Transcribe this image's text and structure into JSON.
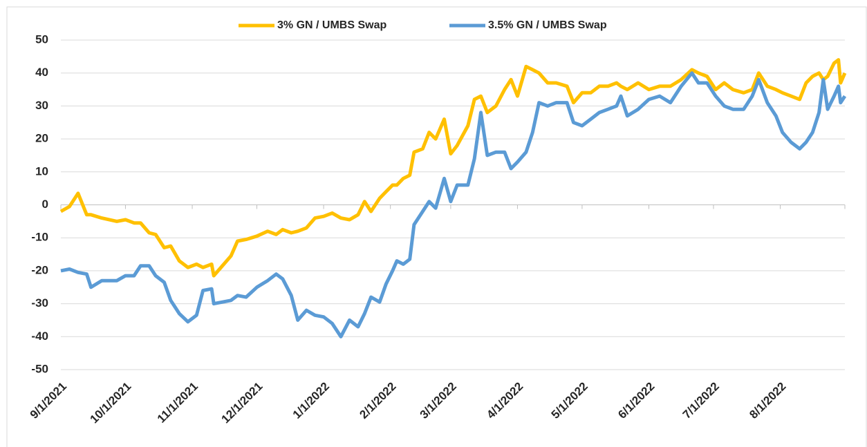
{
  "chart_data": {
    "type": "line",
    "legend": "top",
    "grid": true,
    "ylim": [
      -50,
      50
    ],
    "yticks": [
      -50,
      -40,
      -30,
      -20,
      -10,
      0,
      10,
      20,
      30,
      40,
      50
    ],
    "xlim": [
      "9/1/2021",
      "8/31/2022"
    ],
    "xticks": [
      "9/1/2021",
      "10/1/2021",
      "11/1/2021",
      "12/1/2021",
      "1/1/2022",
      "2/1/2022",
      "3/1/2022",
      "4/1/2022",
      "5/1/2022",
      "6/1/2022",
      "7/1/2022",
      "8/1/2022"
    ],
    "x": [
      "9/1/2021",
      "9/5/2021",
      "9/9/2021",
      "9/13/2021",
      "9/15/2021",
      "9/20/2021",
      "9/27/2021",
      "10/1/2021",
      "10/5/2021",
      "10/8/2021",
      "10/12/2021",
      "10/15/2021",
      "10/19/2021",
      "10/22/2021",
      "10/26/2021",
      "10/30/2021",
      "11/3/2021",
      "11/6/2021",
      "11/10/2021",
      "11/11/2021",
      "11/15/2021",
      "11/19/2021",
      "11/22/2021",
      "11/26/2021",
      "12/1/2021",
      "12/6/2021",
      "12/10/2021",
      "12/13/2021",
      "12/17/2021",
      "12/20/2021",
      "12/24/2021",
      "12/28/2021",
      "1/1/2022",
      "1/5/2022",
      "1/9/2022",
      "1/13/2022",
      "1/17/2022",
      "1/20/2022",
      "1/23/2022",
      "1/27/2022",
      "1/30/2022",
      "2/2/2022",
      "2/4/2022",
      "2/7/2022",
      "2/10/2022",
      "2/12/2022",
      "2/16/2022",
      "2/19/2022",
      "2/22/2022",
      "2/26/2022",
      "3/1/2022",
      "3/4/2022",
      "3/9/2022",
      "3/12/2022",
      "3/15/2022",
      "3/18/2022",
      "3/22/2022",
      "3/26/2022",
      "3/29/2022",
      "4/1/2022",
      "4/5/2022",
      "4/8/2022",
      "4/11/2022",
      "4/15/2022",
      "4/19/2022",
      "4/24/2022",
      "4/27/2022",
      "5/1/2022",
      "5/5/2022",
      "5/9/2022",
      "5/13/2022",
      "5/17/2022",
      "5/19/2022",
      "5/22/2022",
      "5/27/2022",
      "6/1/2022",
      "6/6/2022",
      "6/11/2022",
      "6/16/2022",
      "6/21/2022",
      "6/24/2022",
      "6/28/2022",
      "7/2/2022",
      "7/6/2022",
      "7/10/2022",
      "7/15/2022",
      "7/19/2022",
      "7/22/2022",
      "7/26/2022",
      "7/30/2022",
      "8/2/2022",
      "8/6/2022",
      "8/10/2022",
      "8/13/2022",
      "8/16/2022",
      "8/19/2022",
      "8/21/2022",
      "8/23/2022",
      "8/26/2022",
      "8/28/2022",
      "8/29/2022",
      "8/31/2022"
    ],
    "series": [
      {
        "name": "3% GN / UMBS Swap",
        "color": "#FFC000",
        "values": [
          -2,
          -0.5,
          3.5,
          -3,
          -3,
          -4,
          -5,
          -4.5,
          -5.5,
          -5.5,
          -8.5,
          -9,
          -13,
          -12.5,
          -17,
          -19,
          -18,
          -19,
          -18,
          -21.5,
          -18.5,
          -15.5,
          -11,
          -10.5,
          -9.5,
          -8,
          -9,
          -7.5,
          -8.5,
          -8,
          -7,
          -4,
          -3.5,
          -2.5,
          -4,
          -4.5,
          -3,
          1,
          -2,
          2,
          4,
          6,
          6,
          8,
          9,
          16,
          17,
          22,
          20,
          26,
          15.5,
          18,
          24,
          32,
          33,
          28,
          30,
          35,
          38,
          33,
          42,
          41,
          40,
          37,
          37,
          36,
          31,
          34,
          34,
          36,
          36,
          37,
          36,
          35,
          37,
          35,
          36,
          36,
          38,
          41,
          40,
          39,
          35,
          37,
          35,
          34,
          35,
          40,
          36,
          35,
          34,
          33,
          32,
          37,
          39,
          40,
          38,
          39,
          43,
          44,
          37,
          40
        ]
      },
      {
        "name": "3.5% GN / UMBS Swap",
        "color": "#5B9BD5",
        "values": [
          -20,
          -19.5,
          -20.5,
          -21,
          -25,
          -23,
          -23,
          -21.5,
          -21.5,
          -18.5,
          -18.5,
          -21.5,
          -23.5,
          -29,
          -33,
          -35.5,
          -33.5,
          -26,
          -25.5,
          -30,
          -29.5,
          -29,
          -27.5,
          -28,
          -25,
          -23,
          -21,
          -22.5,
          -27.5,
          -35,
          -32,
          -33.5,
          -34,
          -36,
          -40,
          -35,
          -37,
          -33,
          -28,
          -29.5,
          -24,
          -20,
          -17,
          -18,
          -16.5,
          -6,
          -2,
          1,
          -1,
          8,
          1,
          6,
          6,
          14,
          28,
          15,
          16,
          16,
          11,
          13,
          16,
          22,
          31,
          30,
          31,
          31,
          25,
          24,
          26,
          28,
          29,
          30,
          33,
          27,
          29,
          32,
          33,
          31,
          36,
          40,
          37,
          37,
          33,
          30,
          29,
          29,
          33,
          38,
          31,
          27,
          22,
          19,
          17,
          19,
          22,
          28,
          38,
          29,
          33,
          36,
          31,
          33
        ]
      }
    ]
  }
}
